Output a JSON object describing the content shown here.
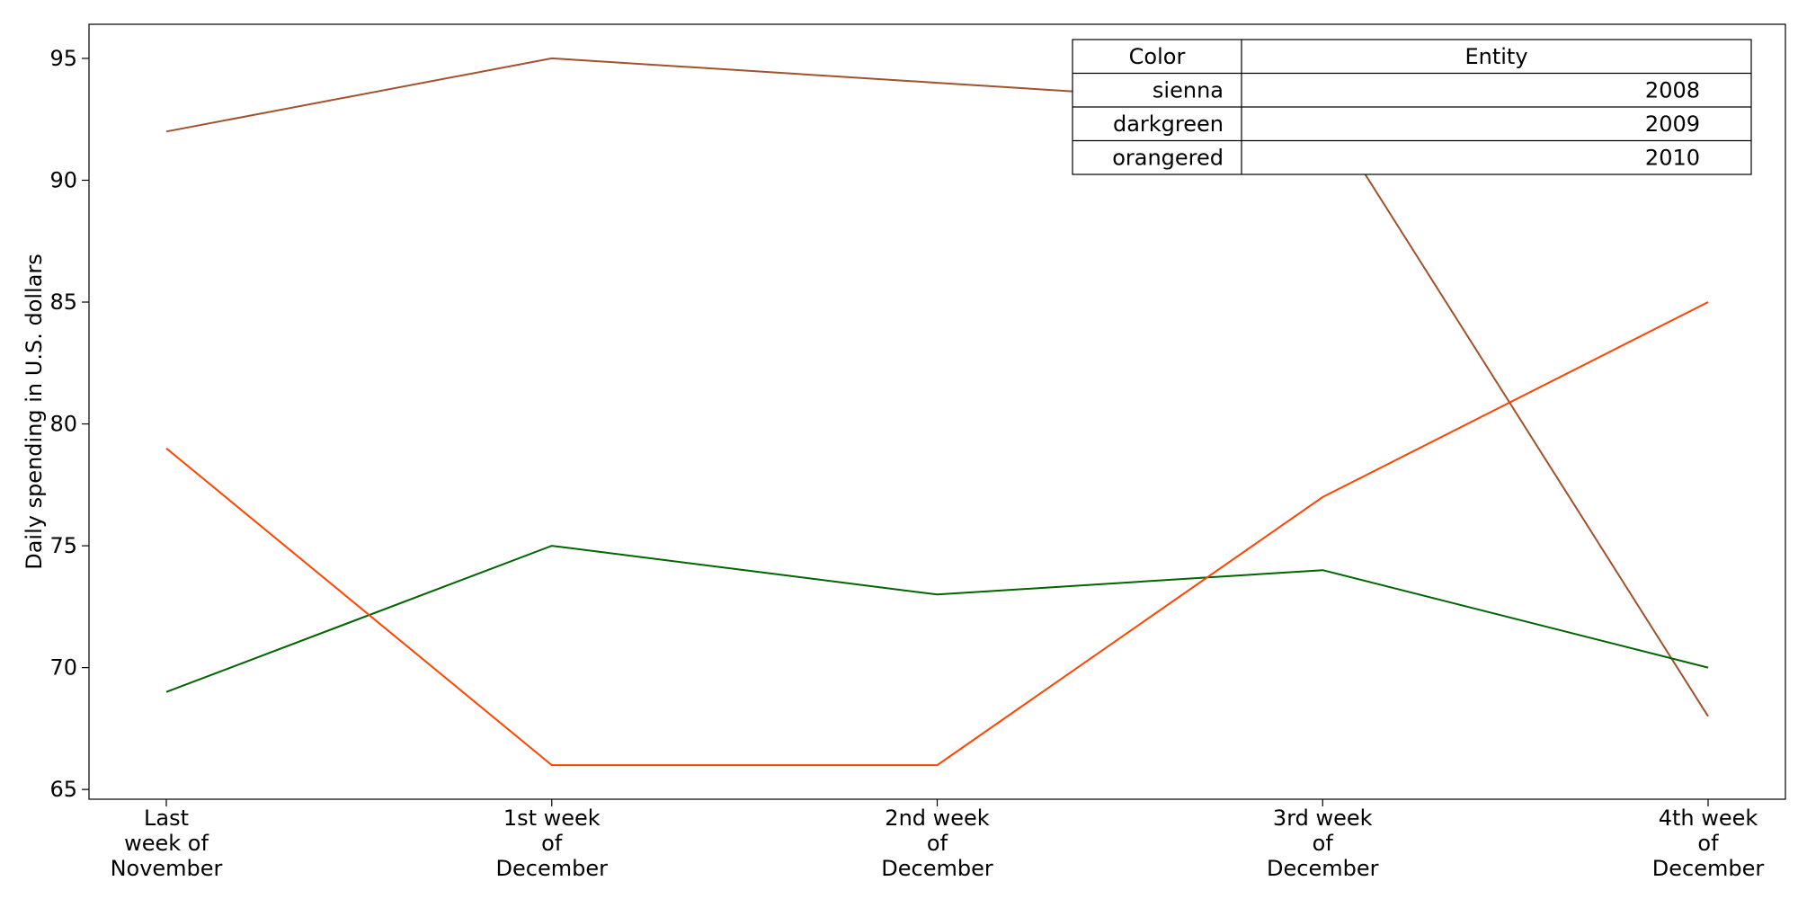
{
  "chart_data": {
    "type": "line",
    "title": "",
    "xlabel": "",
    "ylabel": "Daily spending in U.S. dollars",
    "categories": [
      [
        "Last",
        "week of",
        "November"
      ],
      [
        "1st week",
        "of",
        "December"
      ],
      [
        "2nd week",
        "of",
        "December"
      ],
      [
        "3rd week",
        "of",
        "December"
      ],
      [
        "4th week",
        "of",
        "December"
      ]
    ],
    "yticks": [
      65,
      70,
      75,
      80,
      85,
      90,
      95
    ],
    "ylim": [
      64.6,
      96.4
    ],
    "grid": false,
    "series": [
      {
        "name": "2008",
        "color_name": "sienna",
        "color": "#a0522d",
        "values": [
          92,
          95,
          94,
          93,
          68
        ]
      },
      {
        "name": "2009",
        "color_name": "darkgreen",
        "color": "#006400",
        "values": [
          69,
          75,
          73,
          74,
          70
        ]
      },
      {
        "name": "2010",
        "color_name": "orangered",
        "color": "#ff4500",
        "values": [
          79,
          66,
          66,
          77,
          85
        ]
      }
    ],
    "legend": {
      "placement": "top-right",
      "header": [
        "Color",
        "Entity"
      ]
    }
  }
}
